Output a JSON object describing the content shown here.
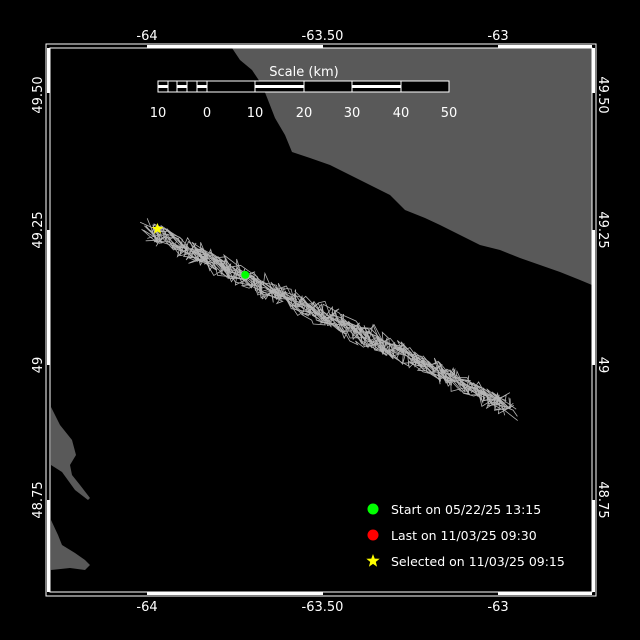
{
  "map": {
    "colors": {
      "water": "#000000",
      "land": "#595959",
      "track": "#b4b4b4",
      "frame": "#ffffff"
    },
    "lon_ticks": [
      {
        "value": -64,
        "label": "-64"
      },
      {
        "value": -63.5,
        "label": "-63.50"
      },
      {
        "value": -63,
        "label": "-63"
      }
    ],
    "lat_ticks": [
      {
        "value": 49.5,
        "label": "49.50"
      },
      {
        "value": 49.25,
        "label": "49.25"
      },
      {
        "value": 49,
        "label": "49"
      },
      {
        "value": 48.75,
        "label": "48.75"
      }
    ],
    "scale_bar": {
      "title": "Scale (km)",
      "labels": [
        "10",
        "0",
        "10",
        "20",
        "30",
        "40",
        "50"
      ]
    },
    "markers": {
      "start": {
        "lon": -63.72,
        "lat": 49.167,
        "color": "#00ff00"
      },
      "last": {
        "color": "#ff0000"
      },
      "selected": {
        "lon": -63.97,
        "lat": 49.252,
        "color": "#ffff00"
      }
    },
    "legend": [
      {
        "symbol": "circle",
        "color": "#00ff00",
        "label": "Start on 05/22/25 13:15"
      },
      {
        "symbol": "circle",
        "color": "#ff0000",
        "label": "Last on 11/03/25 09:30"
      },
      {
        "symbol": "star",
        "color": "#ffff00",
        "label": "Selected on 11/03/25 09:15"
      }
    ]
  }
}
